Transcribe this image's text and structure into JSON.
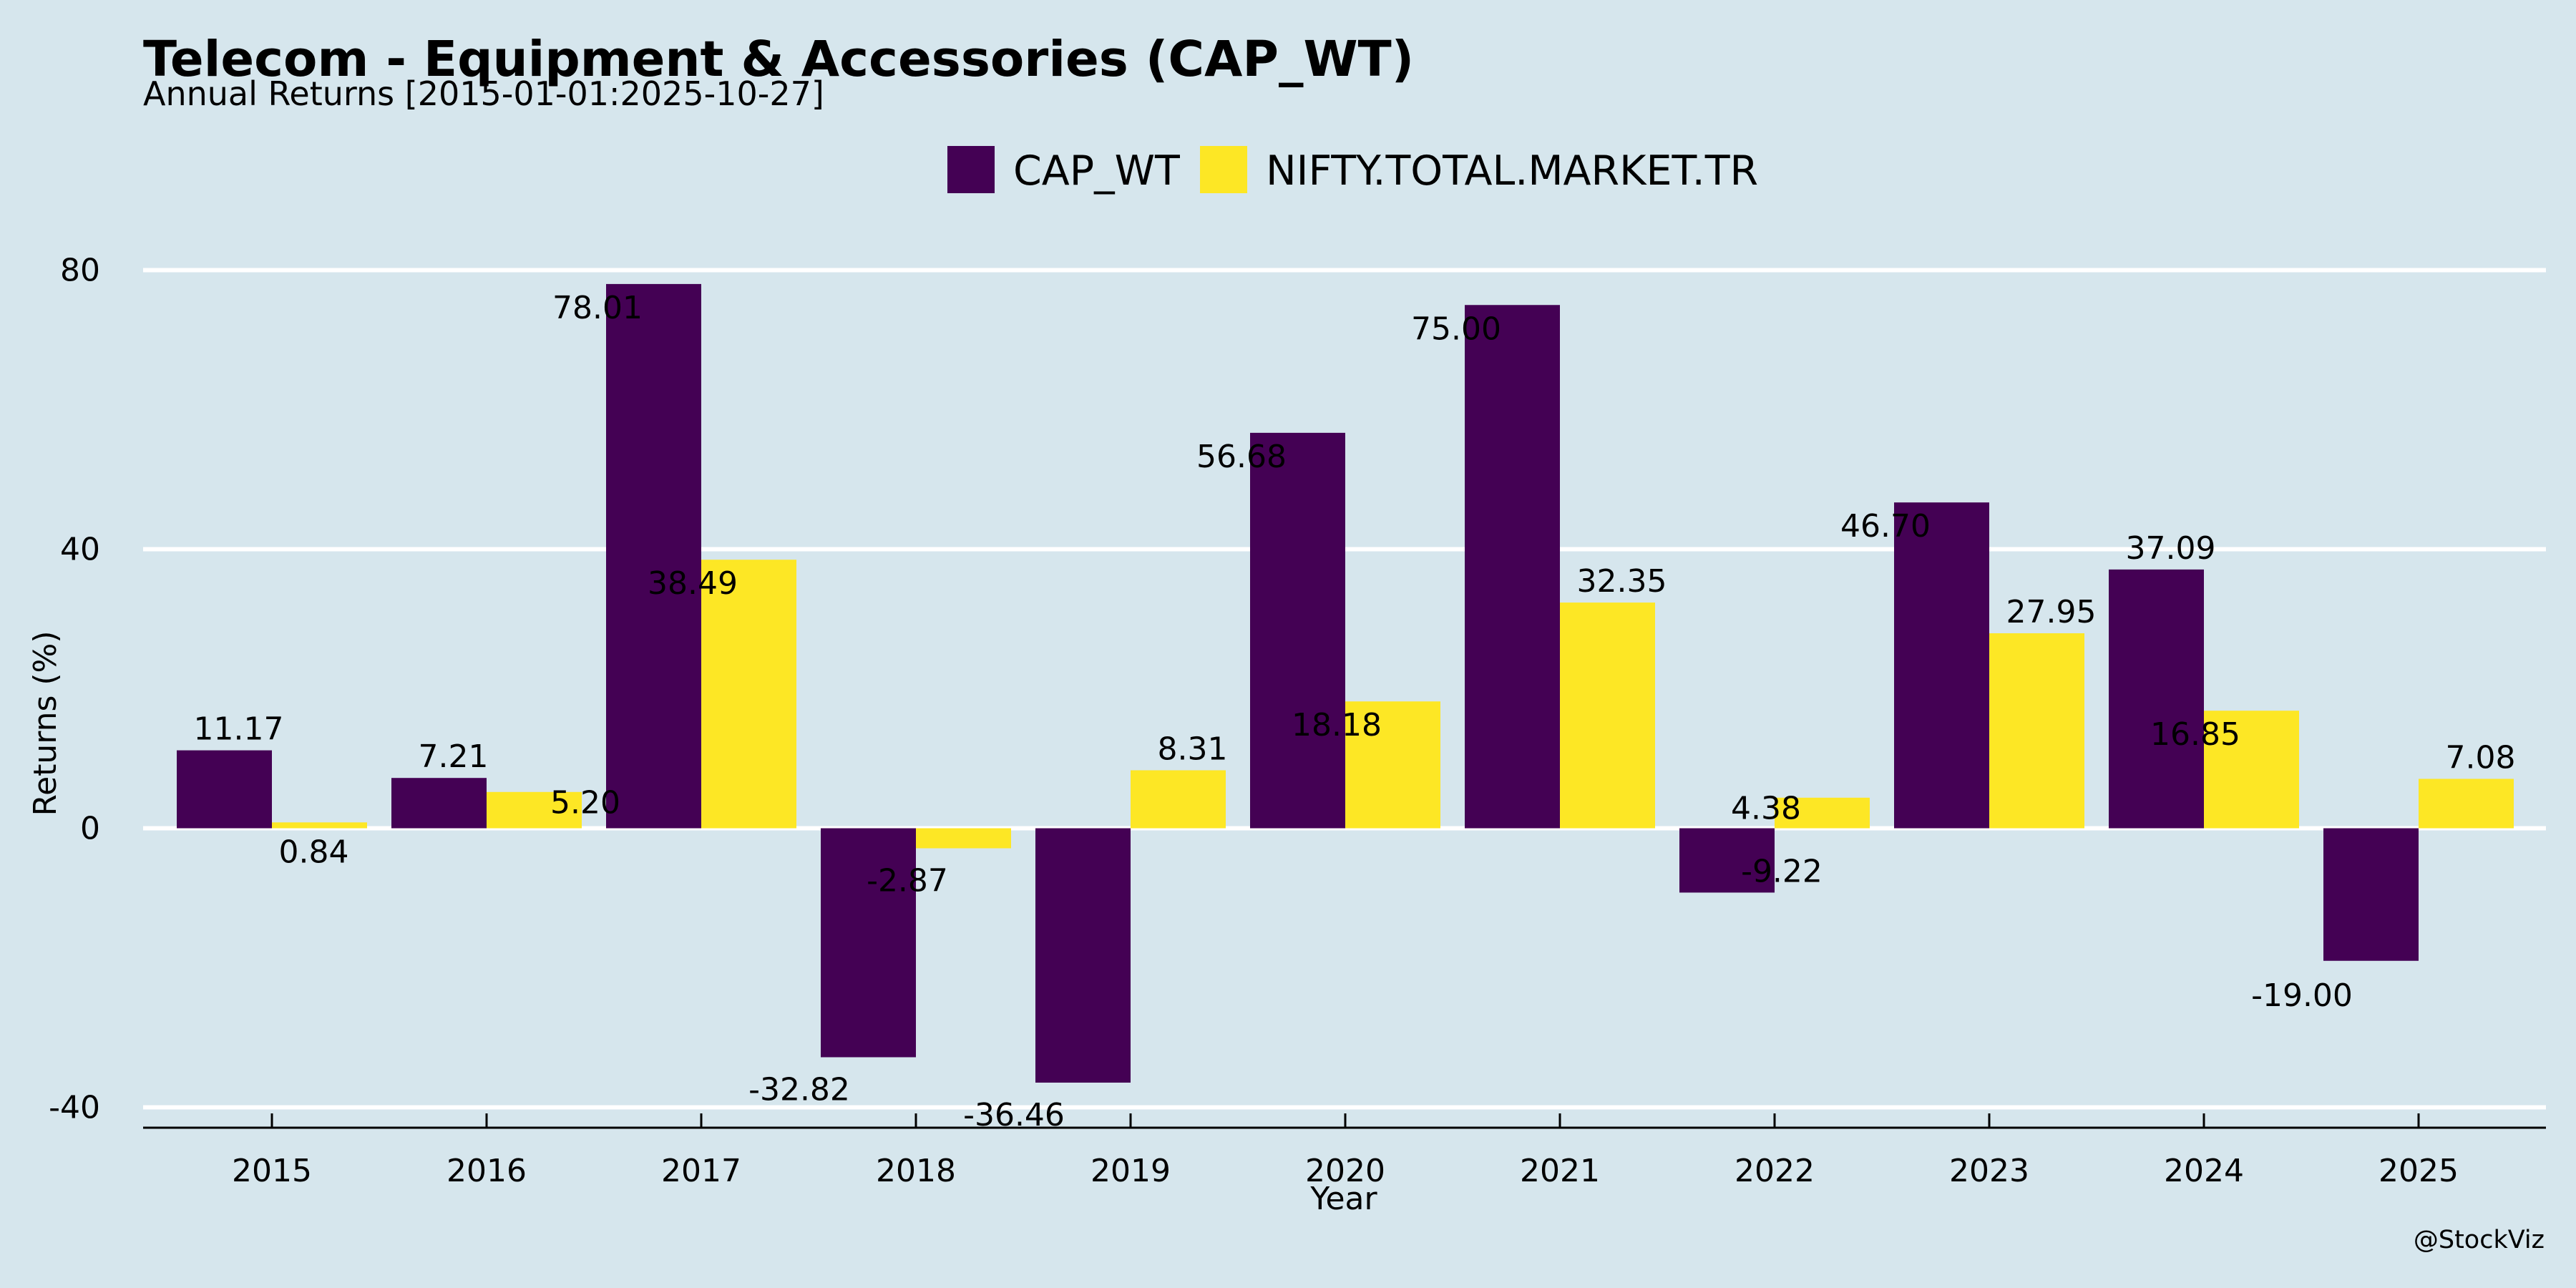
{
  "header": {
    "title": "Telecom - Equipment & Accessories (CAP_WT)",
    "subtitle": "Annual Returns [2015-01-01:2025-10-27]"
  },
  "credit": "@StockViz",
  "chart_data": {
    "type": "bar",
    "title": "Telecom - Equipment & Accessories (CAP_WT)",
    "subtitle": "Annual Returns [2015-01-01:2025-10-27]",
    "xlabel": "Year",
    "ylabel": "Returns (%)",
    "categories": [
      "2015",
      "2016",
      "2017",
      "2018",
      "2019",
      "2020",
      "2021",
      "2022",
      "2023",
      "2024",
      "2025"
    ],
    "series": [
      {
        "name": "CAP_WT",
        "color": "#440154",
        "values": [
          11.17,
          7.21,
          78.01,
          -32.82,
          -36.46,
          56.68,
          75.0,
          -9.22,
          46.7,
          37.09,
          -19.0
        ],
        "labels": [
          "11.17",
          "7.21",
          "78.01",
          "-32.82",
          "-36.46",
          "56.68",
          "75.00",
          "-9.22",
          "46.70",
          "37.09",
          "-19.00"
        ]
      },
      {
        "name": "NIFTY.TOTAL.MARKET.TR",
        "color": "#fde725",
        "values": [
          0.84,
          5.2,
          38.49,
          -2.87,
          8.31,
          18.18,
          32.35,
          4.38,
          27.95,
          16.85,
          7.08
        ],
        "labels": [
          "0.84",
          "5.20",
          "38.49",
          "-2.87",
          "8.31",
          "18.18",
          "32.35",
          "4.38",
          "27.95",
          "16.85",
          "7.08"
        ]
      }
    ],
    "ylim": [
      -42,
      82
    ],
    "yticks": [
      -40,
      0,
      40,
      80
    ],
    "ytick_labels": [
      "-40",
      "0",
      "40",
      "80"
    ],
    "grid": true,
    "legend": "top-center"
  }
}
